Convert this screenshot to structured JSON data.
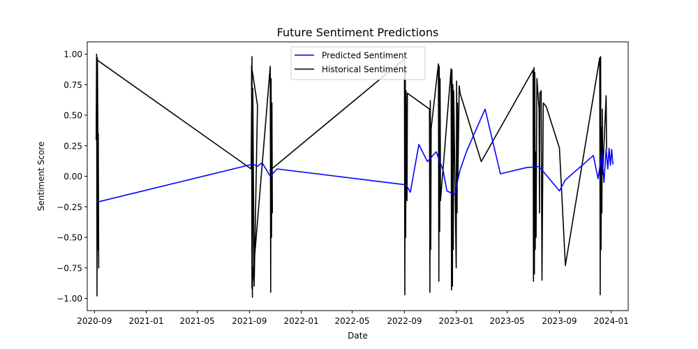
{
  "chart_data": {
    "type": "line",
    "title": "Future Sentiment Predictions",
    "xlabel": "Date",
    "ylabel": "Sentiment Score",
    "xlim": [
      "2020-08-15",
      "2024-02-10"
    ],
    "ylim": [
      -1.1,
      1.1
    ],
    "x_ticks": [
      "2020-09-01",
      "2021-01-01",
      "2021-05-01",
      "2021-09-01",
      "2022-01-01",
      "2022-05-01",
      "2022-09-01",
      "2023-01-01",
      "2023-05-01",
      "2023-09-01",
      "2024-01-01"
    ],
    "x_tick_labels": [
      "2020-09",
      "2021-01",
      "2021-05",
      "2021-09",
      "2022-01",
      "2022-05",
      "2022-09",
      "2023-01",
      "2023-05",
      "2023-09",
      "2024-01"
    ],
    "y_ticks": [
      -1.0,
      -0.75,
      -0.5,
      -0.25,
      0.0,
      0.25,
      0.5,
      0.75,
      1.0
    ],
    "y_tick_labels": [
      "−1.00",
      "−0.75",
      "−0.50",
      "−0.25",
      "0.00",
      "0.25",
      "0.50",
      "0.75",
      "1.00"
    ],
    "grid": false,
    "legend_position": "top-center",
    "series": [
      {
        "name": "Predicted Sentiment",
        "color": "#0000ff",
        "points": [
          [
            "2020-09-08",
            -0.2
          ],
          [
            "2020-09-09",
            -0.21
          ],
          [
            "2021-09-10",
            0.1
          ],
          [
            "2021-09-19",
            0.08
          ],
          [
            "2021-10-01",
            0.11
          ],
          [
            "2021-10-20",
            0.0
          ],
          [
            "2021-11-05",
            0.06
          ],
          [
            "2022-09-05",
            -0.07
          ],
          [
            "2022-09-15",
            -0.13
          ],
          [
            "2022-10-05",
            0.26
          ],
          [
            "2022-10-25",
            0.12
          ],
          [
            "2022-11-15",
            0.2
          ],
          [
            "2022-12-01",
            0.05
          ],
          [
            "2022-12-10",
            -0.12
          ],
          [
            "2022-12-28",
            -0.15
          ],
          [
            "2023-01-10",
            0.05
          ],
          [
            "2023-01-25",
            0.2
          ],
          [
            "2023-02-10",
            0.33
          ],
          [
            "2023-03-10",
            0.55
          ],
          [
            "2023-04-15",
            0.02
          ],
          [
            "2023-06-15",
            0.07
          ],
          [
            "2023-07-15",
            0.08
          ],
          [
            "2023-09-01",
            -0.12
          ],
          [
            "2023-09-15",
            -0.03
          ],
          [
            "2023-11-20",
            0.17
          ],
          [
            "2023-12-01",
            -0.02
          ],
          [
            "2023-12-10",
            0.19
          ],
          [
            "2023-12-15",
            -0.05
          ],
          [
            "2023-12-20",
            0.22
          ],
          [
            "2023-12-24",
            0.06
          ],
          [
            "2023-12-27",
            0.23
          ],
          [
            "2023-12-30",
            0.09
          ],
          [
            "2024-01-02",
            0.22
          ],
          [
            "2024-01-05",
            0.1
          ]
        ]
      },
      {
        "name": "Historical Sentiment",
        "color": "#000000",
        "points": [
          [
            "2020-09-05",
            0.3
          ],
          [
            "2020-09-06",
            1.0
          ],
          [
            "2020-09-07",
            -0.98
          ],
          [
            "2020-09-08",
            0.97
          ],
          [
            "2020-09-09",
            -0.6
          ],
          [
            "2020-09-10",
            0.35
          ],
          [
            "2020-09-11",
            -0.75
          ],
          [
            "2020-09-08",
            0.95
          ],
          [
            "2021-09-05",
            0.06
          ],
          [
            "2021-09-07",
            0.98
          ],
          [
            "2021-09-08",
            -0.99
          ],
          [
            "2021-09-09",
            0.72
          ],
          [
            "2021-09-12",
            -0.9
          ],
          [
            "2021-09-20",
            0.58
          ],
          [
            "2021-09-06",
            0.9
          ],
          [
            "2021-09-07",
            -0.92
          ],
          [
            "2021-10-20",
            0.9
          ],
          [
            "2021-10-21",
            -0.95
          ],
          [
            "2021-10-22",
            0.8
          ],
          [
            "2021-10-23",
            -0.5
          ],
          [
            "2021-10-24",
            0.6
          ],
          [
            "2021-10-25",
            -0.3
          ],
          [
            "2021-10-20",
            0.05
          ],
          [
            "2022-09-01",
            0.96
          ],
          [
            "2022-09-02",
            -0.97
          ],
          [
            "2022-09-03",
            0.85
          ],
          [
            "2022-09-04",
            -0.5
          ],
          [
            "2022-09-05",
            0.7
          ],
          [
            "2022-09-06",
            0.1
          ],
          [
            "2022-09-07",
            -0.2
          ],
          [
            "2022-09-08",
            0.68
          ],
          [
            "2022-10-30",
            0.55
          ],
          [
            "2022-10-31",
            -0.95
          ],
          [
            "2022-11-01",
            0.62
          ],
          [
            "2022-11-02",
            -0.6
          ],
          [
            "2022-11-03",
            0.38
          ],
          [
            "2022-10-30",
            0.27
          ],
          [
            "2022-11-20",
            0.92
          ],
          [
            "2022-11-21",
            -0.86
          ],
          [
            "2022-11-22",
            0.9
          ],
          [
            "2022-11-23",
            -0.45
          ],
          [
            "2022-11-24",
            0.8
          ],
          [
            "2022-11-25",
            -0.2
          ],
          [
            "2022-12-20",
            0.88
          ],
          [
            "2022-12-21",
            -0.93
          ],
          [
            "2022-12-22",
            0.87
          ],
          [
            "2022-12-23",
            -0.9
          ],
          [
            "2022-12-24",
            0.75
          ],
          [
            "2022-12-25",
            -0.6
          ],
          [
            "2022-12-26",
            0.7
          ],
          [
            "2023-01-01",
            -0.75
          ],
          [
            "2023-01-02",
            0.78
          ],
          [
            "2023-01-03",
            -0.3
          ],
          [
            "2023-01-04",
            0.6
          ],
          [
            "2023-01-05",
            0.0
          ],
          [
            "2023-01-08",
            0.74
          ],
          [
            "2023-01-10",
            0.68
          ],
          [
            "2023-03-01",
            0.12
          ],
          [
            "2023-07-01",
            0.87
          ],
          [
            "2023-07-02",
            -0.86
          ],
          [
            "2023-07-03",
            0.89
          ],
          [
            "2023-07-04",
            -0.8
          ],
          [
            "2023-07-05",
            0.85
          ],
          [
            "2023-07-06",
            -0.6
          ],
          [
            "2023-07-07",
            0.2
          ],
          [
            "2023-07-08",
            -0.5
          ],
          [
            "2023-07-10",
            0.8
          ],
          [
            "2023-07-15",
            0.55
          ],
          [
            "2023-07-16",
            -0.3
          ],
          [
            "2023-07-17",
            0.68
          ],
          [
            "2023-07-20",
            0.7
          ],
          [
            "2023-07-22",
            -0.85
          ],
          [
            "2023-07-25",
            0.6
          ],
          [
            "2023-08-01",
            0.57
          ],
          [
            "2023-09-01",
            0.23
          ],
          [
            "2023-09-15",
            -0.73
          ],
          [
            "2023-12-05",
            0.97
          ],
          [
            "2023-12-06",
            -0.97
          ],
          [
            "2023-12-07",
            0.98
          ],
          [
            "2023-12-08",
            -0.6
          ],
          [
            "2023-12-09",
            0.4
          ],
          [
            "2023-12-10",
            -0.3
          ],
          [
            "2023-12-11",
            0.55
          ],
          [
            "2023-12-12",
            0.02
          ],
          [
            "2023-12-20",
            0.66
          ],
          [
            "2023-12-21",
            0.22
          ]
        ]
      }
    ]
  }
}
